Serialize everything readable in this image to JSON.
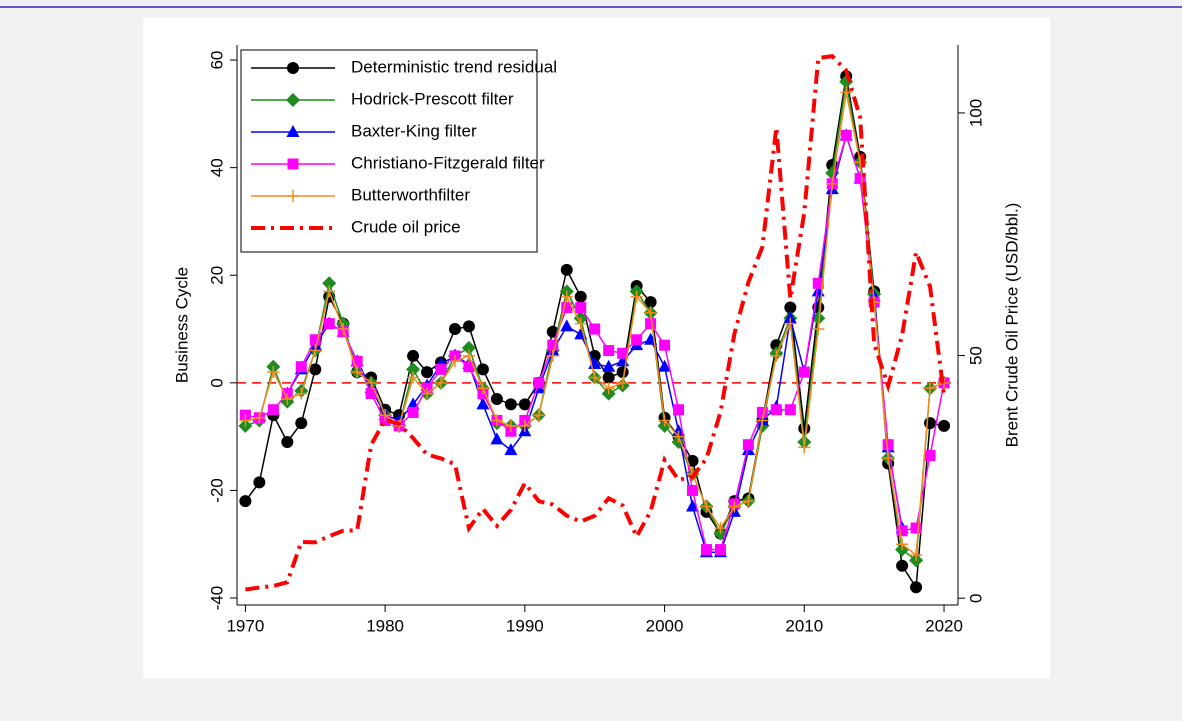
{
  "chart_data": {
    "type": "line",
    "ylabel": "Business Cycle",
    "y2label": "Brent Crude Oil Price (USD/bbl.)",
    "x": [
      1970,
      1971,
      1972,
      1973,
      1974,
      1975,
      1976,
      1977,
      1978,
      1979,
      1980,
      1981,
      1982,
      1983,
      1984,
      1985,
      1986,
      1987,
      1988,
      1989,
      1990,
      1991,
      1992,
      1993,
      1994,
      1995,
      1996,
      1997,
      1998,
      1999,
      2000,
      2001,
      2002,
      2003,
      2004,
      2005,
      2006,
      2007,
      2008,
      2009,
      2010,
      2011,
      2012,
      2013,
      2014,
      2015,
      2016,
      2017,
      2018,
      2019,
      2020
    ],
    "xlim": [
      1969.4,
      2021
    ],
    "xticks": [
      1970,
      1980,
      1990,
      2000,
      2010,
      2020
    ],
    "ylim": [
      -41.3,
      62.8
    ],
    "yticks": [
      -40,
      -20,
      0,
      20,
      40,
      60
    ],
    "y2lim": [
      -1.4,
      114
    ],
    "y2ticks": [
      0,
      50,
      100
    ],
    "reference_line": {
      "value": 0,
      "color": "#ff0000"
    },
    "legend": "top-left",
    "series": [
      {
        "name": "Deterministic trend residual",
        "color": "#000000",
        "marker": "circle",
        "values": [
          -22,
          -18.5,
          -6,
          -11,
          -7.5,
          2.5,
          16,
          11,
          2,
          1,
          -5,
          -6,
          5,
          2,
          3.8,
          10,
          10.5,
          2.5,
          -3,
          -4,
          -4,
          0,
          9.5,
          21,
          16,
          5,
          1,
          2,
          18,
          15,
          -6.5,
          -10,
          -14.5,
          -24,
          -28,
          -22,
          -21.5,
          -7,
          7,
          14,
          -8.5,
          14,
          40.5,
          57,
          42,
          17,
          -15,
          -34,
          -38,
          -7.5,
          -8
        ]
      },
      {
        "name": "Hodrick-Prescott filter",
        "color": "#1e8c1e",
        "marker": "diamond",
        "values": [
          -8,
          -7,
          3,
          -3.5,
          -1.5,
          6,
          18.5,
          11,
          2,
          0,
          -6,
          -8,
          2.5,
          -2,
          0,
          5,
          6.5,
          -1,
          -7.5,
          -8,
          -8,
          -6,
          6,
          17,
          12,
          1,
          -2,
          -0.5,
          17,
          13,
          -8,
          -11,
          -17,
          -23,
          -28,
          -23,
          -22,
          -8,
          5.5,
          12,
          -11,
          12,
          39,
          56,
          41,
          16.5,
          -14,
          -31,
          -33,
          -1,
          0
        ]
      },
      {
        "name": "Baxter-King filter",
        "color": "#0000ff",
        "marker": "triangle",
        "values": [
          null,
          null,
          null,
          -2,
          2.5,
          7,
          11,
          9.5,
          4,
          -1,
          -6,
          -7,
          -4,
          -0.5,
          3.5,
          5,
          3.5,
          -4,
          -10.5,
          -12.5,
          -9,
          -1,
          6,
          10.5,
          9,
          3.5,
          3,
          4,
          7,
          8,
          3,
          -9,
          -23,
          -31.5,
          -31.5,
          -24,
          -12.5,
          -7,
          -4.5,
          12,
          2,
          17,
          36,
          46,
          38,
          16,
          -12,
          -27,
          null,
          null,
          null
        ]
      },
      {
        "name": "Christiano-Fitzgerald filter",
        "color": "#ff00ff",
        "marker": "square",
        "values": [
          -6,
          -6.5,
          -5,
          -2,
          3,
          8,
          11,
          9.5,
          4,
          -2,
          -7,
          -8,
          -5.5,
          -1,
          2.5,
          5,
          3,
          -2,
          -7,
          -9,
          -7,
          0,
          7,
          14,
          14,
          10,
          6,
          5.5,
          8,
          11,
          7,
          -5,
          -20,
          -31,
          -31,
          -22.5,
          -11.5,
          -5.5,
          -5,
          -5,
          2,
          18.5,
          37,
          46,
          38,
          15,
          -11.5,
          -27.5,
          -27,
          -13.5,
          0
        ]
      },
      {
        "name": "Butterworthfilter",
        "color": "#f28c1e",
        "marker": "plus",
        "values": [
          -7,
          -6.5,
          2,
          -3,
          -2,
          6,
          17,
          10,
          2,
          0,
          -6,
          -8,
          1,
          -2,
          0,
          4,
          5,
          -1,
          -7,
          -8,
          -8,
          -6,
          5,
          16,
          11,
          1,
          -1,
          0,
          16,
          13,
          -7,
          -10,
          -17,
          -23,
          -27,
          -23,
          -22,
          -7,
          5,
          11,
          -12,
          10,
          37,
          54,
          41,
          15,
          -14,
          -30,
          -32,
          -1,
          0
        ]
      },
      {
        "name": "Crude oil price",
        "color": "#ff0000",
        "marker": "none",
        "dash": "dashdot",
        "axis": "y2",
        "values": [
          1.8,
          2.2,
          2.5,
          3.3,
          11.6,
          11.5,
          12.8,
          13.9,
          14,
          31.6,
          36.8,
          35.9,
          33,
          29.6,
          28.8,
          27.6,
          14.4,
          18.4,
          14.9,
          18.2,
          23.7,
          20,
          19.3,
          17,
          15.8,
          17,
          20.6,
          19.1,
          12.7,
          17.9,
          28.5,
          24.4,
          25,
          28.8,
          38.3,
          54.5,
          65.1,
          72.4,
          97,
          61.7,
          79.5,
          111.3,
          111.7,
          108.7,
          99,
          52.4,
          43.7,
          54.2,
          71.3,
          64.2,
          41.8
        ]
      }
    ]
  }
}
